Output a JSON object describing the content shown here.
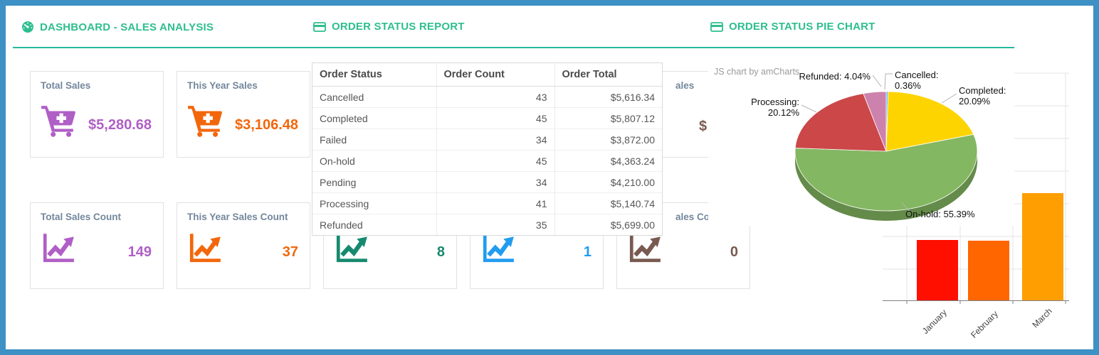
{
  "page": {
    "frame_color": "#3d91c5",
    "accent_green": "#2ebe8f",
    "divider_color": "#26b99a"
  },
  "sections": {
    "sales_analysis_title": "DASHBOARD - SALES ANALYSIS",
    "order_status_report_title": "ORDER STATUS REPORT",
    "order_status_pie_title": "ORDER STATUS PIE CHART"
  },
  "cards": {
    "row1": [
      {
        "title": "Total Sales",
        "value": "$5,280.68",
        "color": "#b05fc6"
      },
      {
        "title": "This Year Sales",
        "value": "$3,106.48",
        "color": "#f2670c"
      },
      {
        "title": "",
        "value": "",
        "color": "#168a6f"
      },
      {
        "title": "",
        "value": "",
        "color": "#229cf0"
      },
      {
        "title_fragment": "ales",
        "value_fragment": "$",
        "color": "#795a50"
      }
    ],
    "row2": [
      {
        "title": "Total Sales Count",
        "value": "149",
        "color": "#b05fc6"
      },
      {
        "title": "This Year Sales Count",
        "value": "37",
        "color": "#f2670c"
      },
      {
        "title": "",
        "value": "8",
        "color": "#168a6f"
      },
      {
        "title": "",
        "value": "1",
        "color": "#229cf0"
      },
      {
        "title_fragment": "ales Co",
        "value": "0",
        "color": "#795a50"
      }
    ]
  },
  "table": {
    "headers": [
      "Order Status",
      "Order Count",
      "Order Total"
    ],
    "rows": [
      {
        "status": "Cancelled",
        "count": "43",
        "total": "$5,616.34"
      },
      {
        "status": "Completed",
        "count": "45",
        "total": "$5,807.12"
      },
      {
        "status": "Failed",
        "count": "34",
        "total": "$3,872.00"
      },
      {
        "status": "On-hold",
        "count": "45",
        "total": "$4,363.24"
      },
      {
        "status": "Pending",
        "count": "34",
        "total": "$4,210.00"
      },
      {
        "status": "Processing",
        "count": "41",
        "total": "$5,140.74"
      },
      {
        "status": "Refunded",
        "count": "35",
        "total": "$5,699.00"
      }
    ]
  },
  "pie_credit": "JS chart by amCharts",
  "pie_labels": {
    "refunded": "Refunded: 4.04%",
    "cancelled": [
      "Cancelled:",
      "0.36%"
    ],
    "completed": [
      "Completed:",
      "20.09%"
    ],
    "processing": [
      "Processing:",
      "20.12%"
    ],
    "onhold": "On-hold: 55.39%"
  },
  "chart_data": [
    {
      "type": "pie",
      "title": "ORDER STATUS PIE CHART",
      "style": "3d",
      "legend_position": "outside-labels-with-leader-lines",
      "slices": [
        {
          "label": "Cancelled",
          "value": 0.36,
          "color": "#67b7dc"
        },
        {
          "label": "Completed",
          "value": 20.09,
          "color": "#fdd400"
        },
        {
          "label": "On-hold",
          "value": 55.39,
          "color": "#84b761"
        },
        {
          "label": "Processing",
          "value": 20.12,
          "color": "#cc4748"
        },
        {
          "label": "Refunded",
          "value": 4.04,
          "color": "#cd82ad"
        }
      ]
    },
    {
      "type": "bar",
      "categories": [
        "January",
        "February",
        "March"
      ],
      "values": [
        85,
        84,
        151
      ],
      "values_unit": "px-estimated; y-axis tick labels occluded by pie panel",
      "colors": [
        "#ff0f00",
        "#ff6600",
        "#ff9e01"
      ],
      "grid": true,
      "xlabel": "",
      "ylabel": ""
    }
  ]
}
